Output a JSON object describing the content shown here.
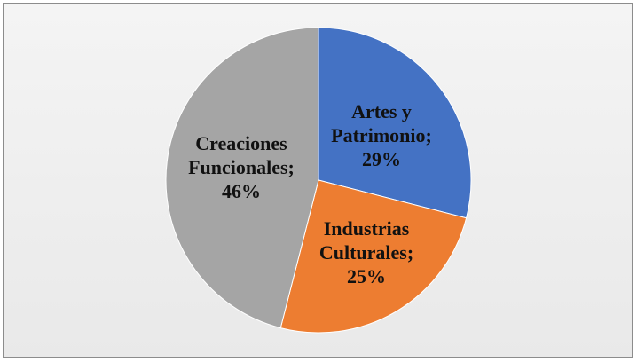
{
  "chart_data": {
    "type": "pie",
    "title": "",
    "slices": [
      {
        "label_lines": [
          "Artes y",
          "Patrimonio;",
          "29%"
        ],
        "name": "Artes y Patrimonio",
        "value": 29,
        "color": "#4472c4"
      },
      {
        "label_lines": [
          "Industrias",
          "Culturales;",
          "25%"
        ],
        "name": "Industrias Culturales",
        "value": 25,
        "color": "#ed7d31"
      },
      {
        "label_lines": [
          "Creaciones",
          "Funcionales;",
          "46%"
        ],
        "name": "Creaciones Funcionales",
        "value": 46,
        "color": "#a5a5a5"
      }
    ],
    "legend": "none",
    "data_labels": "inside"
  }
}
